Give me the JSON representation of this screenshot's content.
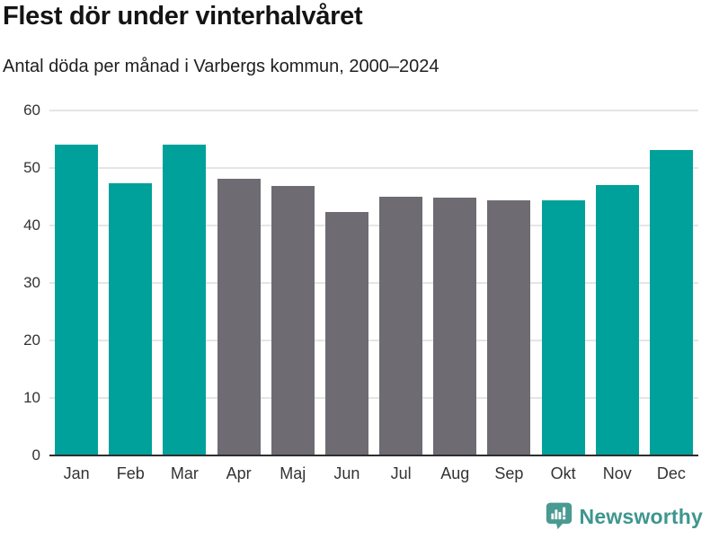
{
  "chart_data": {
    "type": "bar",
    "title": "Flest dör under vinterhalvåret",
    "subtitle": "Antal döda per månad i Varbergs kommun, 2000–2024",
    "categories": [
      "Jan",
      "Feb",
      "Mar",
      "Apr",
      "Maj",
      "Jun",
      "Jul",
      "Aug",
      "Sep",
      "Okt",
      "Nov",
      "Dec"
    ],
    "values": [
      54.0,
      47.4,
      54.0,
      48.1,
      46.8,
      42.3,
      45.0,
      44.9,
      44.3,
      44.4,
      47.1,
      53.2
    ],
    "highlighted_categories": [
      "Jan",
      "Feb",
      "Mar",
      "Okt",
      "Nov",
      "Dec"
    ],
    "highlight_color": "#00a19a",
    "base_color": "#6e6c72",
    "xlabel": "",
    "ylabel": "",
    "ylim": [
      0,
      60
    ],
    "yticks": [
      0,
      10,
      20,
      30,
      40,
      50,
      60
    ],
    "grid": "horizontal",
    "legend": "none"
  },
  "footer": {
    "brand": "Newsworthy",
    "brand_color": "#3e968e",
    "icon": "bar-chart-speech-bubble-icon"
  }
}
